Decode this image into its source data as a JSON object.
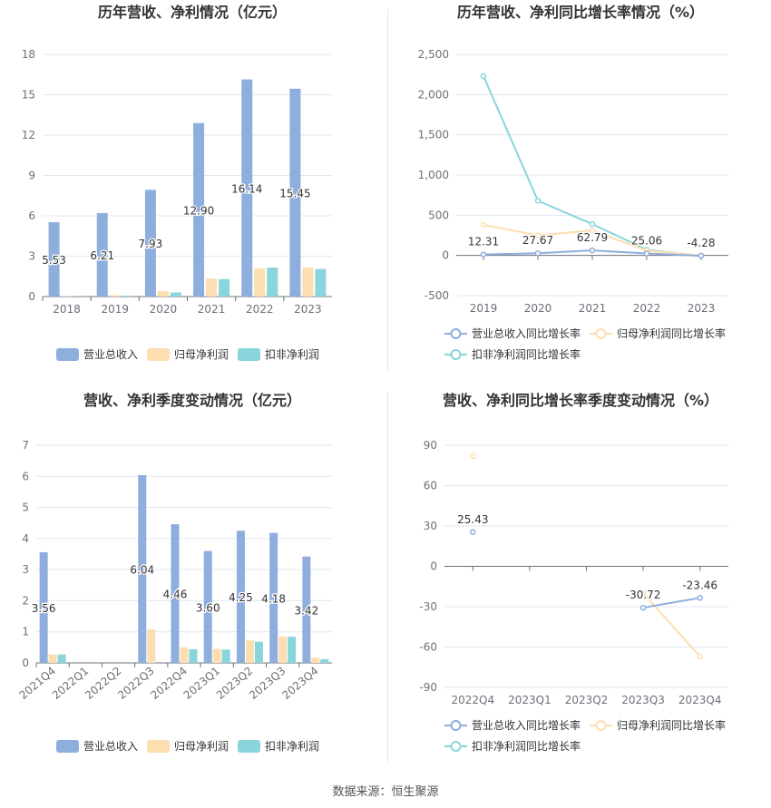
{
  "colors": {
    "revenue": "#8eaedd",
    "net_profit": "#fddeb0",
    "deducted_profit": "#88d5db",
    "revenue_line": "#8eaedd",
    "net_line": "#fddeb0",
    "deducted_line": "#88d5db"
  },
  "legends": {
    "bars": [
      "营业总收入",
      "归母净利润",
      "扣非净利润"
    ],
    "lines": [
      "营业总收入同比增长率",
      "归母净利润同比增长率",
      "扣非净利润同比增长率"
    ]
  },
  "source": "数据来源：恒生聚源",
  "chart_data": [
    {
      "type": "bar",
      "title": "历年营收、净利情况（亿元）",
      "categories": [
        "2018",
        "2019",
        "2020",
        "2021",
        "2022",
        "2023"
      ],
      "ylim": [
        0,
        18
      ],
      "yticks": [
        "0",
        "3",
        "6",
        "9",
        "12",
        "15",
        "18"
      ],
      "series": [
        {
          "name": "营业总收入",
          "values": [
            5.53,
            6.21,
            7.93,
            12.9,
            16.14,
            15.45
          ],
          "labels": [
            "5.53",
            "6.21",
            "7.93",
            "12.90",
            "16.14",
            "15.45"
          ]
        },
        {
          "name": "归母净利润",
          "values": [
            0.05,
            0.1,
            0.4,
            1.35,
            2.1,
            2.15
          ]
        },
        {
          "name": "扣非净利润",
          "values": [
            0.02,
            0.05,
            0.3,
            1.3,
            2.15,
            2.05
          ]
        }
      ],
      "grid": true,
      "legend": "bottom"
    },
    {
      "type": "line",
      "title": "历年营收、净利同比增长率情况（%）",
      "categories": [
        "2019",
        "2020",
        "2021",
        "2022",
        "2023"
      ],
      "ylim": [
        -500,
        2500
      ],
      "yticks": [
        "-500",
        "0",
        "500",
        "1,000",
        "1,500",
        "2,000",
        "2,500"
      ],
      "series": [
        {
          "name": "营业总收入同比增长率",
          "values": [
            12.31,
            27.67,
            62.79,
            25.06,
            -4.28
          ],
          "labels": [
            "12.31",
            "27.67",
            "62.79",
            "25.06",
            "-4.28"
          ]
        },
        {
          "name": "归母净利润同比增长率",
          "values": [
            380,
            250,
            310,
            60,
            0
          ]
        },
        {
          "name": "扣非净利润同比增长率",
          "values": [
            2230,
            680,
            390,
            70,
            -5
          ]
        }
      ],
      "grid": true,
      "legend": "bottom"
    },
    {
      "type": "bar",
      "title": "营收、净利季度变动情况（亿元）",
      "categories": [
        "2021Q4",
        "2022Q1",
        "2022Q2",
        "2022Q3",
        "2022Q4",
        "2023Q1",
        "2023Q2",
        "2023Q3",
        "2023Q4"
      ],
      "ylim": [
        0,
        7
      ],
      "yticks": [
        "0",
        "1",
        "2",
        "3",
        "4",
        "5",
        "6",
        "7"
      ],
      "series": [
        {
          "name": "营业总收入",
          "values": [
            3.56,
            null,
            null,
            6.04,
            4.46,
            3.6,
            4.25,
            4.18,
            3.42
          ],
          "labels": [
            "3.56",
            "",
            "",
            "6.04",
            "4.46",
            "3.60",
            "4.25",
            "4.18",
            "3.42"
          ]
        },
        {
          "name": "归母净利润",
          "values": [
            0.27,
            null,
            null,
            1.08,
            0.5,
            0.45,
            0.72,
            0.85,
            0.17
          ]
        },
        {
          "name": "扣非净利润",
          "values": [
            0.27,
            null,
            null,
            null,
            0.44,
            0.43,
            0.68,
            0.84,
            0.12
          ]
        }
      ],
      "grid": true,
      "legend": "bottom"
    },
    {
      "type": "line",
      "title": "营收、净利同比增长率季度变动情况（%）",
      "categories": [
        "2022Q4",
        "2023Q1",
        "2023Q2",
        "2023Q3",
        "2023Q4"
      ],
      "ylim": [
        -90,
        90
      ],
      "yticks": [
        "-90",
        "-60",
        "-30",
        "0",
        "30",
        "60",
        "90"
      ],
      "series": [
        {
          "name": "营业总收入同比增长率",
          "values": [
            25.43,
            null,
            null,
            -30.72,
            -23.46
          ],
          "labels": [
            "25.43",
            "",
            "",
            "-30.72",
            "-23.46"
          ]
        },
        {
          "name": "归母净利润同比增长率",
          "values": [
            82,
            null,
            null,
            -20,
            -67
          ]
        },
        {
          "name": "扣非净利润同比增长率",
          "values": [
            null,
            null,
            null,
            null,
            null
          ]
        }
      ],
      "grid": true,
      "legend": "bottom"
    }
  ]
}
